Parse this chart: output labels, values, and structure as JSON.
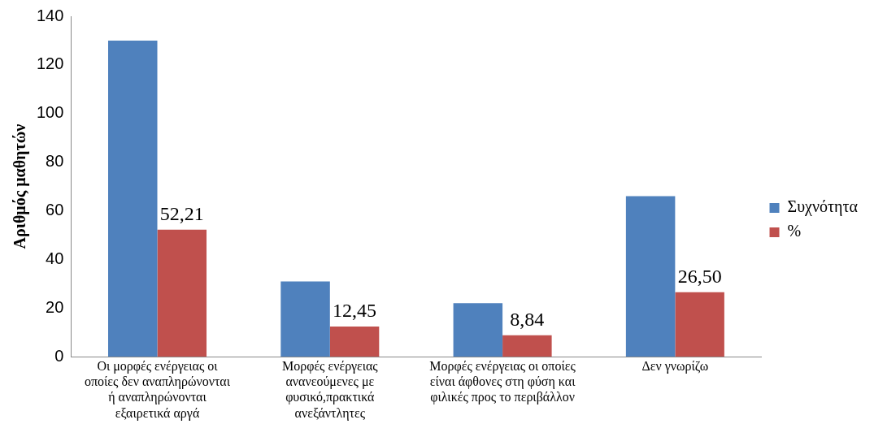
{
  "chart_data": {
    "type": "bar",
    "ylabel": "Αριθμός μαθητών",
    "categories": [
      "Οι μορφές ενέργειας οι οποίες δεν αναπληρώνονται ή αναπληρώνονται εξαιρετικά αργά",
      "Μορφές  ενέργειας ανανεούμενες  με φυσικό,πρακτικά ανεξάντλητες",
      "Μορφές ενέργειας  οι οποίες είναι άφθονες στη φύση και φιλικές προς το περιβάλλον",
      "Δεν γνωρίζω"
    ],
    "series": [
      {
        "name": "Συχνότητα",
        "color": "#4f81bd",
        "values": [
          130,
          31,
          22,
          66
        ]
      },
      {
        "name": "%",
        "color": "#c0504d",
        "values": [
          52.21,
          12.45,
          8.84,
          26.5
        ],
        "value_labels": [
          "52,21",
          "12,45",
          "8,84",
          "26,50"
        ]
      }
    ],
    "ylim": [
      0,
      140
    ],
    "yticks": [
      0,
      20,
      40,
      60,
      80,
      100,
      120,
      140
    ],
    "grid": false,
    "legend": "right"
  }
}
